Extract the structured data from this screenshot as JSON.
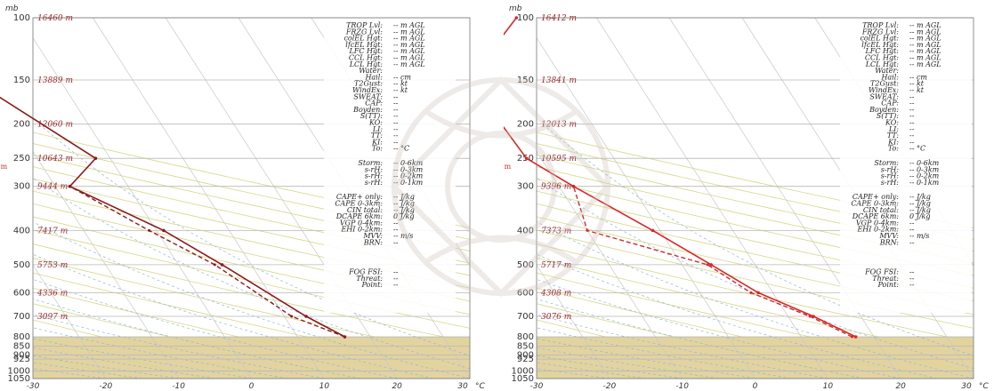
{
  "chart_data": [
    {
      "type": "line",
      "name": "skew-T sounding (left)",
      "units": {
        "pressure": "mb",
        "temperature": "°C"
      },
      "pressure_label": "mb",
      "temp_unit": "°C",
      "x_ticks": [
        "-30",
        "-20",
        "-10",
        "0",
        "10",
        "20",
        "30"
      ],
      "pressure_ticks": [
        "100",
        "150",
        "200",
        "250",
        "300",
        "400",
        "500",
        "600",
        "700",
        "800",
        "850",
        "900",
        "925",
        "1000",
        "1050"
      ],
      "height_labels": [
        {
          "p": 100,
          "text": "16460 m"
        },
        {
          "p": 150,
          "text": "13889 m"
        },
        {
          "p": 200,
          "text": "12060 m"
        },
        {
          "p": 250,
          "text": "10643 m"
        },
        {
          "p": 300,
          "text": "9444 m"
        },
        {
          "p": 400,
          "text": "7417 m"
        },
        {
          "p": 500,
          "text": "5753 m"
        },
        {
          "p": 600,
          "text": "4336 m"
        },
        {
          "p": 700,
          "text": "3097 m"
        }
      ],
      "temperature": [
        [
          800,
          16.5
        ],
        [
          700,
          13
        ],
        [
          500,
          6
        ],
        [
          400,
          1
        ],
        [
          300,
          -8
        ],
        [
          250,
          -2
        ],
        [
          150,
          -12
        ],
        [
          100,
          -5
        ]
      ],
      "dewpoint": [
        [
          800,
          16.5
        ],
        [
          700,
          11
        ],
        [
          500,
          5
        ],
        [
          400,
          -1
        ],
        [
          300,
          -8
        ]
      ],
      "m_marker": {
        "p": 268,
        "t": -16
      },
      "index_table": {
        "block1": [
          {
            "label": "TROP Lvl:",
            "value": "-- m AGL"
          },
          {
            "label": "FRZG Lvl:",
            "value": "-- m AGL"
          },
          {
            "label": "colEL Hgt:",
            "value": "-- m AGL"
          },
          {
            "label": "lfcEL Hgt:",
            "value": "-- m AGL"
          },
          {
            "label": "LFC Hgt:",
            "value": "-- m AGL"
          },
          {
            "label": "CCL Hgt:",
            "value": "-- m AGL"
          },
          {
            "label": "LCL Hgt:",
            "value": "-- m AGL"
          },
          {
            "label": "Water:",
            "value": ""
          },
          {
            "label": "Hail:",
            "value": "-- cm"
          },
          {
            "label": "T2Gust:",
            "value": "-- kt"
          },
          {
            "label": "WindEx:",
            "value": "-- kt"
          },
          {
            "label": "SWEAT:",
            "value": "--"
          },
          {
            "label": "CAP:",
            "value": "--"
          },
          {
            "label": "Boyden:",
            "value": "--"
          },
          {
            "label": "S(TT):",
            "value": "--"
          },
          {
            "label": "KO:",
            "value": "--"
          },
          {
            "label": "LI:",
            "value": "--"
          },
          {
            "label": "TT:",
            "value": "--"
          },
          {
            "label": "KI:",
            "value": "--"
          },
          {
            "label": "To:",
            "value": "-- °C"
          }
        ],
        "block2": [
          {
            "label": "Storm:",
            "value": "-- 0-6km"
          },
          {
            "label": "s-rH:",
            "value": "-- 0-3km"
          },
          {
            "label": "s-rH:",
            "value": "-- 0-2km"
          },
          {
            "label": "s-rH:",
            "value": "-- 0-1km"
          }
        ],
        "block3": [
          {
            "label": "CAPE+ only:",
            "value": "-- J/kg"
          },
          {
            "label": "CAPE 0-3km:",
            "value": "-- J/kg"
          },
          {
            "label": "CIN total:",
            "value": "-- J/kg"
          },
          {
            "label": "DCAPE 6km:",
            "value": "0 J/kg"
          },
          {
            "label": "VGP 0-4km:",
            "value": "--"
          },
          {
            "label": "EHI 0-2km:",
            "value": "--"
          },
          {
            "label": "MVV:",
            "value": "-- m/s"
          },
          {
            "label": "BRN:",
            "value": "--"
          }
        ],
        "block4": [
          {
            "label": "FOG FSI:",
            "value": "--"
          },
          {
            "label": "Threat:",
            "value": "--"
          },
          {
            "label": "Point:",
            "value": "--"
          }
        ]
      }
    },
    {
      "type": "line",
      "name": "skew-T sounding (right)",
      "units": {
        "pressure": "mb",
        "temperature": "°C"
      },
      "pressure_label": "mb",
      "temp_unit": "°C",
      "x_ticks": [
        "-30",
        "-20",
        "-10",
        "0",
        "10",
        "20",
        "30"
      ],
      "pressure_ticks": [
        "100",
        "150",
        "200",
        "250",
        "300",
        "400",
        "500",
        "600",
        "700",
        "800",
        "850",
        "900",
        "925",
        "1000",
        "1050"
      ],
      "height_labels": [
        {
          "p": 100,
          "text": "16412 m"
        },
        {
          "p": 150,
          "text": "13841 m"
        },
        {
          "p": 200,
          "text": "12013 m"
        },
        {
          "p": 250,
          "text": "10595 m"
        },
        {
          "p": 300,
          "text": "9396 m"
        },
        {
          "p": 400,
          "text": "7373 m"
        },
        {
          "p": 500,
          "text": "5717 m"
        },
        {
          "p": 600,
          "text": "4308 m"
        },
        {
          "p": 700,
          "text": "3076 m"
        }
      ],
      "temperature": [
        [
          800,
          17.5
        ],
        [
          700,
          13.5
        ],
        [
          600,
          8
        ],
        [
          500,
          4
        ],
        [
          400,
          -1
        ],
        [
          300,
          -8
        ],
        [
          250,
          -12
        ],
        [
          150,
          -13
        ],
        [
          100,
          -1
        ]
      ],
      "dewpoint": [
        [
          800,
          17
        ],
        [
          700,
          13
        ],
        [
          600,
          7
        ],
        [
          500,
          3.5
        ],
        [
          400,
          -10
        ],
        [
          300,
          -8
        ]
      ],
      "m_marker": {
        "p": 268,
        "t": -16
      },
      "index_table": {
        "block1": [
          {
            "label": "TROP Lvl:",
            "value": "-- m AGL"
          },
          {
            "label": "FRZG Lvl:",
            "value": "-- m AGL"
          },
          {
            "label": "colEL Hgt:",
            "value": "-- m AGL"
          },
          {
            "label": "lfcEL Hgt:",
            "value": "-- m AGL"
          },
          {
            "label": "LFC Hgt:",
            "value": "-- m AGL"
          },
          {
            "label": "CCL Hgt:",
            "value": "-- m AGL"
          },
          {
            "label": "LCL Hgt:",
            "value": "-- m AGL"
          },
          {
            "label": "Water:",
            "value": ""
          },
          {
            "label": "Hail:",
            "value": "-- cm"
          },
          {
            "label": "T2Gust:",
            "value": "-- kt"
          },
          {
            "label": "WindEx:",
            "value": "-- kt"
          },
          {
            "label": "SWEAT:",
            "value": "--"
          },
          {
            "label": "CAP:",
            "value": "--"
          },
          {
            "label": "Boyden:",
            "value": "--"
          },
          {
            "label": "S(TT):",
            "value": "--"
          },
          {
            "label": "KO:",
            "value": "--"
          },
          {
            "label": "LI:",
            "value": "--"
          },
          {
            "label": "TT:",
            "value": "--"
          },
          {
            "label": "KI:",
            "value": "--"
          },
          {
            "label": "To:",
            "value": "-- °C"
          }
        ],
        "block2": [
          {
            "label": "Storm:",
            "value": "-- 0-6km"
          },
          {
            "label": "s-rH:",
            "value": "-- 0-3km"
          },
          {
            "label": "s-rH:",
            "value": "-- 0-2km"
          },
          {
            "label": "s-rH:",
            "value": "-- 0-1km"
          }
        ],
        "block3": [
          {
            "label": "CAPE+ only:",
            "value": "-- J/kg"
          },
          {
            "label": "CAPE 0-3km:",
            "value": "-- J/kg"
          },
          {
            "label": "CIN total:",
            "value": "-- J/kg"
          },
          {
            "label": "DCAPE 6km:",
            "value": "0 J/kg"
          },
          {
            "label": "VGP 0-4km:",
            "value": "--"
          },
          {
            "label": "EHI 0-2km:",
            "value": "--"
          },
          {
            "label": "MVV:",
            "value": "-- m/s"
          },
          {
            "label": "BRN:",
            "value": "--"
          }
        ],
        "block4": [
          {
            "label": "FOG FSI:",
            "value": "--"
          },
          {
            "label": "Threat:",
            "value": "--"
          },
          {
            "label": "Point:",
            "value": "--"
          }
        ]
      }
    }
  ],
  "colors": {
    "temperature": "#8b1a1a",
    "temperature_right": "#d62828",
    "dewpoint": "#8b1a1a",
    "isobar": "#b8b8b8",
    "isotherm": "#c8c8c8",
    "dry_adiabat": "#d6d98a",
    "moist_adiabat": "#8cb8dc",
    "surface_band": "#e3d3a0",
    "height_label": "#9a2a2a"
  }
}
